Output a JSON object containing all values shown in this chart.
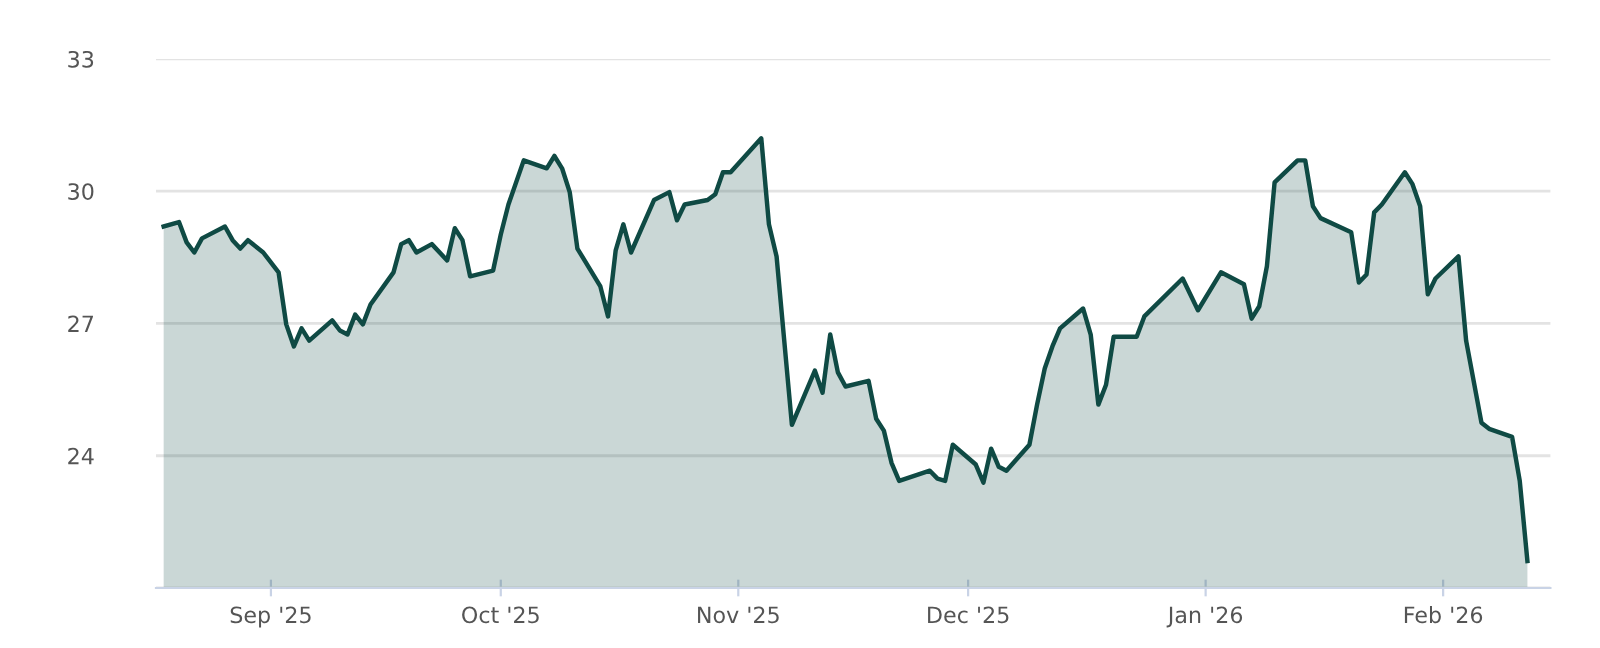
{
  "chart_data": {
    "type": "area",
    "x": [
      "2025-08-18",
      "2025-08-20",
      "2025-08-21",
      "2025-08-22",
      "2025-08-23",
      "2025-08-26",
      "2025-08-27",
      "2025-08-28",
      "2025-08-29",
      "2025-08-31",
      "2025-09-02",
      "2025-09-03",
      "2025-09-04",
      "2025-09-05",
      "2025-09-06",
      "2025-09-09",
      "2025-09-10",
      "2025-09-11",
      "2025-09-12",
      "2025-09-13",
      "2025-09-14",
      "2025-09-17",
      "2025-09-18",
      "2025-09-19",
      "2025-09-20",
      "2025-09-22",
      "2025-09-24",
      "2025-09-25",
      "2025-09-26",
      "2025-09-27",
      "2025-09-30",
      "2025-10-01",
      "2025-10-02",
      "2025-10-04",
      "2025-10-07",
      "2025-10-08",
      "2025-10-09",
      "2025-10-10",
      "2025-10-11",
      "2025-10-14",
      "2025-10-15",
      "2025-10-16",
      "2025-10-17",
      "2025-10-18",
      "2025-10-21",
      "2025-10-23",
      "2025-10-24",
      "2025-10-25",
      "2025-10-28",
      "2025-10-29",
      "2025-10-30",
      "2025-10-31",
      "2025-11-04",
      "2025-11-05",
      "2025-11-06",
      "2025-11-08",
      "2025-11-11",
      "2025-11-12",
      "2025-11-13",
      "2025-11-14",
      "2025-11-15",
      "2025-11-18",
      "2025-11-19",
      "2025-11-20",
      "2025-11-21",
      "2025-11-22",
      "2025-11-26",
      "2025-11-27",
      "2025-11-28",
      "2025-11-29",
      "2025-12-02",
      "2025-12-03",
      "2025-12-04",
      "2025-12-05",
      "2025-12-06",
      "2025-12-09",
      "2025-12-10",
      "2025-12-11",
      "2025-12-12",
      "2025-12-13",
      "2025-12-16",
      "2025-12-17",
      "2025-12-18",
      "2025-12-19",
      "2025-12-20",
      "2025-12-23",
      "2025-12-24",
      "2025-12-29",
      "2025-12-31",
      "2026-01-03",
      "2026-01-06",
      "2026-01-07",
      "2026-01-08",
      "2026-01-09",
      "2026-01-10",
      "2026-01-13",
      "2026-01-14",
      "2026-01-15",
      "2026-01-16",
      "2026-01-20",
      "2026-01-21",
      "2026-01-22",
      "2026-01-23",
      "2026-01-24",
      "2026-01-27",
      "2026-01-28",
      "2026-01-29",
      "2026-01-30",
      "2026-01-31",
      "2026-02-03",
      "2026-02-04",
      "2026-02-06",
      "2026-02-07",
      "2026-02-10",
      "2026-02-11",
      "2026-02-12"
    ],
    "series": [
      {
        "color": "#0f4a44",
        "values": [
          29.2,
          29.3,
          28.84,
          28.61,
          28.93,
          29.2,
          28.89,
          28.7,
          28.89,
          28.61,
          28.16,
          26.98,
          26.48,
          26.89,
          26.61,
          27.07,
          26.84,
          26.75,
          27.2,
          26.98,
          27.43,
          28.16,
          28.8,
          28.89,
          28.61,
          28.8,
          28.43,
          29.16,
          28.89,
          28.07,
          28.2,
          29.02,
          29.7,
          30.7,
          30.52,
          30.8,
          30.52,
          29.98,
          28.7,
          27.84,
          27.16,
          28.66,
          29.25,
          28.61,
          29.8,
          29.98,
          29.34,
          29.7,
          29.8,
          29.93,
          30.43,
          30.43,
          31.2,
          29.25,
          28.52,
          24.7,
          25.93,
          25.43,
          26.75,
          25.89,
          25.57,
          25.7,
          24.84,
          24.57,
          23.84,
          23.43,
          23.66,
          23.48,
          23.43,
          24.25,
          23.8,
          23.39,
          24.16,
          23.75,
          23.66,
          24.25,
          25.16,
          25.98,
          26.48,
          26.89,
          27.34,
          26.75,
          25.16,
          25.61,
          26.7,
          26.7,
          27.16,
          28.02,
          27.3,
          28.16,
          27.89,
          27.11,
          27.39,
          28.3,
          30.2,
          30.7,
          30.7,
          29.66,
          29.39,
          29.07,
          27.93,
          28.11,
          29.52,
          29.7,
          30.43,
          30.16,
          29.66,
          27.66,
          28.02,
          28.52,
          26.61,
          24.75,
          24.61,
          24.43,
          23.43,
          21.61
        ]
      }
    ],
    "xlim": [
      "2025-08-17",
      "2026-02-15"
    ],
    "xticks": [
      {
        "value": "2025-09-01",
        "label": "Sep '25"
      },
      {
        "value": "2025-10-01",
        "label": "Oct '25"
      },
      {
        "value": "2025-11-01",
        "label": "Nov '25"
      },
      {
        "value": "2025-12-01",
        "label": "Dec '25"
      },
      {
        "value": "2026-01-01",
        "label": "Jan '26"
      },
      {
        "value": "2026-02-01",
        "label": "Feb '26"
      }
    ],
    "ylim": [
      21,
      33
    ],
    "yticks": [
      {
        "value": 21,
        "label": null
      },
      24,
      27,
      30,
      33
    ],
    "grid": "y"
  }
}
